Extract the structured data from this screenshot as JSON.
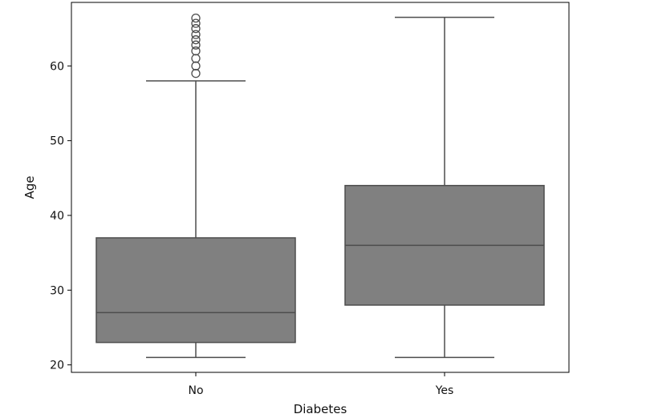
{
  "chart_data": {
    "type": "box",
    "title": "",
    "xlabel": "Diabetes",
    "ylabel": "Age",
    "ylim": [
      19.0,
      68.5
    ],
    "yticks": [
      20,
      30,
      40,
      50,
      60
    ],
    "grid": false,
    "legend": "none",
    "categories": [
      "No",
      "Yes"
    ],
    "box_color": "#808080",
    "line_color": "#4d4d4d",
    "series": [
      {
        "category": "No",
        "whisker_low": 21,
        "q1": 23,
        "median": 27,
        "q3": 37,
        "whisker_high": 58,
        "outliers": [
          59,
          60,
          61,
          62,
          62.8,
          63.5,
          64.2,
          65,
          65.7,
          66.4
        ]
      },
      {
        "category": "Yes",
        "whisker_low": 21,
        "q1": 28,
        "median": 36,
        "q3": 44,
        "whisker_high": 66.5,
        "outliers": []
      }
    ]
  }
}
